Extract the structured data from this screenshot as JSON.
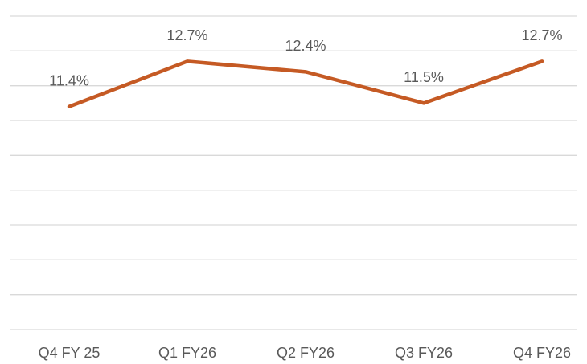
{
  "chart_data": {
    "type": "line",
    "categories": [
      "Q4 FY 25",
      "Q1 FY26",
      "Q2 FY26",
      "Q3 FY26",
      "Q4 FY26"
    ],
    "values": [
      11.4,
      12.7,
      12.4,
      11.5,
      12.7
    ],
    "value_labels": [
      "11.4%",
      "12.7%",
      "12.4%",
      "11.5%",
      "12.7%"
    ],
    "color": "#c55a24",
    "ylim": [
      5,
      14
    ],
    "yticks": [
      5,
      6,
      7,
      8,
      9,
      10,
      11,
      12,
      13,
      14
    ],
    "grid": true
  }
}
